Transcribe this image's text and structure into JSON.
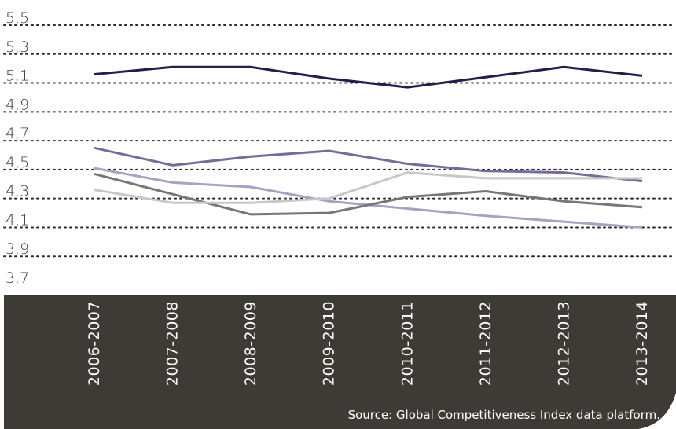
{
  "chart_data": {
    "type": "line",
    "x": [
      "2006-2007",
      "2007-2008",
      "2008-2009",
      "2009-2010",
      "2010-2011",
      "2011-2012",
      "2012-2013",
      "2013-2014"
    ],
    "y_ticks": [
      "5,5",
      "5,3",
      "5,1",
      "4,9",
      "4,7",
      "4,5",
      "4,3",
      "4,1",
      "3,9",
      "3,7"
    ],
    "ylim": [
      3.7,
      5.5
    ],
    "grid": "dotted horizontal",
    "series": [
      {
        "color": "#2b1b4d",
        "values": [
          5.16,
          5.21,
          5.21,
          5.13,
          5.07,
          5.14,
          5.21,
          5.15
        ]
      },
      {
        "color": "#7a6a9a",
        "values": [
          4.65,
          4.53,
          4.59,
          4.63,
          4.54,
          4.49,
          4.48,
          4.42
        ]
      },
      {
        "color": "#a8a2c2",
        "values": [
          4.51,
          4.41,
          4.38,
          4.28,
          4.23,
          4.18,
          4.14,
          4.1
        ]
      },
      {
        "color": "#777777",
        "values": [
          4.47,
          4.33,
          4.19,
          4.2,
          4.31,
          4.35,
          4.28,
          4.24
        ]
      },
      {
        "color": "#c8c8c8",
        "values": [
          4.36,
          4.27,
          4.27,
          4.3,
          4.48,
          4.44,
          4.44,
          4.44
        ]
      }
    ],
    "source": "Source: Global Competitiveness Index data platform."
  }
}
